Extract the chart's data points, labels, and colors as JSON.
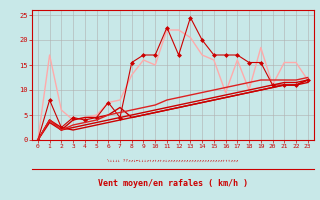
{
  "bg_color": "#c8e8e8",
  "plot_bg_color": "#c8e8e8",
  "grid_color": "#b0b0b0",
  "axis_color": "#cc0000",
  "xlabel": "Vent moyen/en rafales ( km/h )",
  "xlabel_color": "#cc0000",
  "ylabel_ticks": [
    0,
    5,
    10,
    15,
    20,
    25
  ],
  "xlim": [
    -0.5,
    23.5
  ],
  "ylim": [
    0,
    26
  ],
  "xticks": [
    0,
    1,
    2,
    3,
    4,
    5,
    6,
    7,
    8,
    9,
    10,
    11,
    12,
    13,
    14,
    15,
    16,
    17,
    18,
    19,
    20,
    21,
    22,
    23
  ],
  "arrows": "\\↓↓↓↓ ??↗↗↓←↓↓↓↗↑↗↑↗↑↗↓↗↗↗↗↗↗↗↗↗↗↗↗↗↗↗↗↗↗↗↗↗↑↑↑↗↗↗",
  "line1_color": "#ffaaaa",
  "line1_data": [
    [
      0,
      0
    ],
    [
      1,
      17
    ],
    [
      2,
      6
    ],
    [
      3,
      4
    ],
    [
      4,
      4.5
    ],
    [
      5,
      5
    ],
    [
      6,
      7.5
    ],
    [
      7,
      8
    ],
    [
      8,
      13
    ],
    [
      9,
      16
    ],
    [
      10,
      15
    ],
    [
      11,
      22
    ],
    [
      12,
      22
    ],
    [
      13,
      20.5
    ],
    [
      14,
      17
    ],
    [
      15,
      16
    ],
    [
      16,
      9.5
    ],
    [
      17,
      16
    ],
    [
      18,
      10
    ],
    [
      19,
      18.5
    ],
    [
      20,
      11
    ],
    [
      21,
      15.5
    ],
    [
      22,
      15.5
    ],
    [
      23,
      12
    ]
  ],
  "line2_color": "#cc0000",
  "line2_data": [
    [
      0,
      0
    ],
    [
      1,
      8
    ],
    [
      2,
      2.5
    ],
    [
      3,
      4.5
    ],
    [
      4,
      4
    ],
    [
      5,
      4.5
    ],
    [
      6,
      7.5
    ],
    [
      7,
      4.5
    ],
    [
      8,
      15.5
    ],
    [
      9,
      17
    ],
    [
      10,
      17
    ],
    [
      11,
      22.5
    ],
    [
      12,
      17
    ],
    [
      13,
      24.5
    ],
    [
      14,
      20
    ],
    [
      15,
      17
    ],
    [
      16,
      17
    ],
    [
      17,
      17
    ],
    [
      18,
      15.5
    ],
    [
      19,
      15.5
    ],
    [
      20,
      11
    ],
    [
      21,
      11
    ],
    [
      22,
      11
    ],
    [
      23,
      12
    ]
  ],
  "line3_color": "#cc0000",
  "line3_data": [
    [
      0,
      0
    ],
    [
      1,
      3.5
    ],
    [
      2,
      2
    ],
    [
      3,
      4
    ],
    [
      4,
      4.5
    ],
    [
      5,
      4.5
    ],
    [
      6,
      5
    ],
    [
      7,
      6.5
    ],
    [
      8,
      4.5
    ],
    [
      9,
      5
    ],
    [
      10,
      5.5
    ],
    [
      11,
      6
    ],
    [
      12,
      6.5
    ],
    [
      13,
      7
    ],
    [
      14,
      7.5
    ],
    [
      15,
      8
    ],
    [
      16,
      8.5
    ],
    [
      17,
      9
    ],
    [
      18,
      9.5
    ],
    [
      19,
      10
    ],
    [
      20,
      10.5
    ],
    [
      21,
      11
    ],
    [
      22,
      11
    ],
    [
      23,
      11.5
    ]
  ],
  "line4_color": "#cc0000",
  "line4_data": [
    [
      0,
      0
    ],
    [
      1,
      4
    ],
    [
      2,
      2.5
    ],
    [
      3,
      2
    ],
    [
      4,
      2.5
    ],
    [
      5,
      3
    ],
    [
      6,
      3.5
    ],
    [
      7,
      4
    ],
    [
      8,
      4.5
    ],
    [
      9,
      5
    ],
    [
      10,
      5.5
    ],
    [
      11,
      6
    ],
    [
      12,
      6.5
    ],
    [
      13,
      7
    ],
    [
      14,
      7.5
    ],
    [
      15,
      8
    ],
    [
      16,
      8.5
    ],
    [
      17,
      9
    ],
    [
      18,
      9.5
    ],
    [
      19,
      10
    ],
    [
      20,
      10.5
    ],
    [
      21,
      11
    ],
    [
      22,
      11
    ],
    [
      23,
      12
    ]
  ],
  "line5_color": "#cc0000",
  "line5_data": [
    [
      0,
      0
    ],
    [
      1,
      4
    ],
    [
      2,
      2
    ],
    [
      3,
      2.5
    ],
    [
      4,
      3
    ],
    [
      5,
      3.5
    ],
    [
      6,
      4
    ],
    [
      7,
      4.5
    ],
    [
      8,
      5
    ],
    [
      9,
      5.5
    ],
    [
      10,
      6
    ],
    [
      11,
      6.5
    ],
    [
      12,
      7
    ],
    [
      13,
      7.5
    ],
    [
      14,
      8
    ],
    [
      15,
      8.5
    ],
    [
      16,
      9
    ],
    [
      17,
      9.5
    ],
    [
      18,
      10
    ],
    [
      19,
      10.5
    ],
    [
      20,
      11
    ],
    [
      21,
      11.5
    ],
    [
      22,
      11.5
    ],
    [
      23,
      12
    ]
  ],
  "line6_color": "#dd2222",
  "line6_data": [
    [
      0,
      0
    ],
    [
      1,
      4
    ],
    [
      2,
      2
    ],
    [
      3,
      3
    ],
    [
      4,
      3.5
    ],
    [
      5,
      4
    ],
    [
      6,
      5
    ],
    [
      7,
      5.5
    ],
    [
      8,
      6
    ],
    [
      9,
      6.5
    ],
    [
      10,
      7
    ],
    [
      11,
      8
    ],
    [
      12,
      8.5
    ],
    [
      13,
      9
    ],
    [
      14,
      9.5
    ],
    [
      15,
      10
    ],
    [
      16,
      10.5
    ],
    [
      17,
      11
    ],
    [
      18,
      11.5
    ],
    [
      19,
      12
    ],
    [
      20,
      12
    ],
    [
      21,
      12
    ],
    [
      22,
      12
    ],
    [
      23,
      12.5
    ]
  ]
}
